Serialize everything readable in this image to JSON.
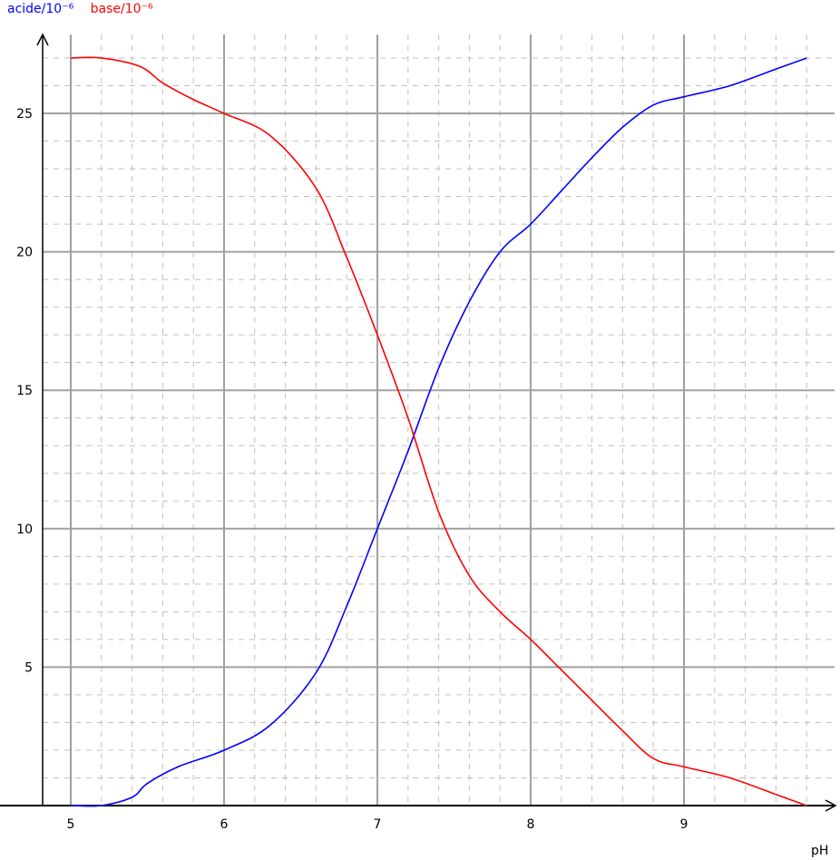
{
  "chart_data": {
    "type": "line",
    "xlabel": "pH",
    "xlim": [
      4.8,
      10.0
    ],
    "ylim": [
      0,
      27.5
    ],
    "x_ticks": [
      "5",
      "6",
      "7",
      "8",
      "9"
    ],
    "y_ticks": [
      "5",
      "10",
      "15",
      "20",
      "25"
    ],
    "grid": true,
    "legend_position": "top-left",
    "series": [
      {
        "name": "acide/10⁻⁶",
        "color": "#0000ff",
        "x": [
          5.0,
          5.2,
          5.4,
          5.5,
          5.7,
          6.0,
          6.3,
          6.6,
          6.8,
          7.0,
          7.2,
          7.4,
          7.6,
          7.8,
          8.0,
          8.2,
          8.4,
          8.6,
          8.8,
          9.0,
          9.3,
          9.6,
          9.8
        ],
        "y": [
          0,
          0,
          0.3,
          0.8,
          1.4,
          2.0,
          2.9,
          4.8,
          7.2,
          10.0,
          12.8,
          15.8,
          18.2,
          20.0,
          21.0,
          22.2,
          23.4,
          24.5,
          25.3,
          25.6,
          26.0,
          26.6,
          27.0
        ]
      },
      {
        "name": "base/10⁻⁶",
        "color": "#ff0000",
        "x": [
          5.0,
          5.2,
          5.45,
          5.6,
          5.8,
          6.0,
          6.3,
          6.6,
          6.8,
          7.0,
          7.2,
          7.4,
          7.6,
          7.8,
          8.0,
          8.2,
          8.4,
          8.6,
          8.8,
          9.0,
          9.3,
          9.6,
          9.8
        ],
        "y": [
          27.0,
          27.0,
          26.7,
          26.1,
          25.5,
          25.0,
          24.2,
          22.3,
          19.8,
          17.0,
          14.0,
          10.6,
          8.3,
          7.0,
          6.0,
          4.9,
          3.8,
          2.7,
          1.7,
          1.4,
          1.0,
          0.4,
          0
        ]
      }
    ]
  }
}
